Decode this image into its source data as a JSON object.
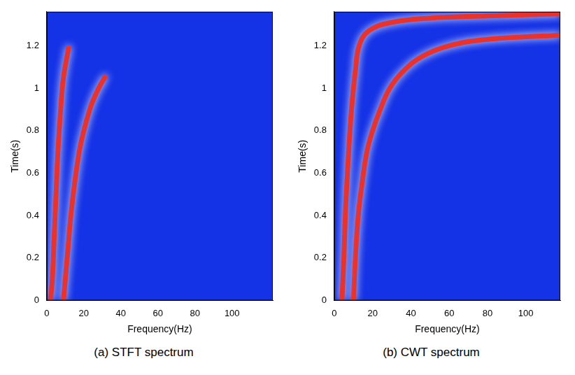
{
  "chart_data": [
    {
      "type": "line",
      "title": "(a) STFT spectrum",
      "x_label": "Frequency(Hz)",
      "y_label": "Time(s)",
      "xlim": [
        0,
        122
      ],
      "ylim": [
        0,
        1.36
      ],
      "xticks": [
        0,
        20,
        40,
        60,
        80,
        100
      ],
      "yticks": [
        0,
        0.2,
        0.4,
        0.6,
        0.8,
        1,
        1.2
      ],
      "grid": false,
      "series": [
        {
          "color": "#e8322a",
          "x": [
            2,
            3,
            4,
            5,
            6,
            7.5,
            9,
            12
          ],
          "values": [
            0,
            0.1,
            0.3,
            0.5,
            0.7,
            0.9,
            1.05,
            1.2
          ]
        },
        {
          "color": "#e8322a",
          "x": [
            9,
            10,
            11.5,
            13,
            15,
            17.5,
            20,
            24,
            28,
            32
          ],
          "values": [
            0,
            0.1,
            0.25,
            0.4,
            0.55,
            0.7,
            0.8,
            0.92,
            1.0,
            1.06
          ]
        }
      ]
    },
    {
      "type": "line",
      "title": "(b) CWT spectrum",
      "x_label": "Frequency(Hz)",
      "y_label": "Time(s)",
      "xlim": [
        0,
        118
      ],
      "ylim": [
        0,
        1.36
      ],
      "xticks": [
        0,
        20,
        40,
        60,
        80,
        100
      ],
      "yticks": [
        0,
        0.2,
        0.4,
        0.6,
        0.8,
        1,
        1.2
      ],
      "grid": false,
      "series": [
        {
          "color": "#e8322a",
          "x": [
            4,
            5,
            6,
            7.5,
            9,
            11,
            13,
            18,
            30,
            50,
            80,
            118
          ],
          "values": [
            0,
            0.2,
            0.45,
            0.7,
            0.9,
            1.08,
            1.2,
            1.27,
            1.31,
            1.33,
            1.34,
            1.35
          ]
        },
        {
          "color": "#e8322a",
          "x": [
            10,
            11,
            12.5,
            14.5,
            17,
            20,
            24,
            29,
            36,
            46,
            60,
            80,
            118
          ],
          "values": [
            0,
            0.2,
            0.4,
            0.55,
            0.7,
            0.8,
            0.9,
            1.0,
            1.08,
            1.15,
            1.2,
            1.23,
            1.25
          ]
        }
      ]
    }
  ]
}
